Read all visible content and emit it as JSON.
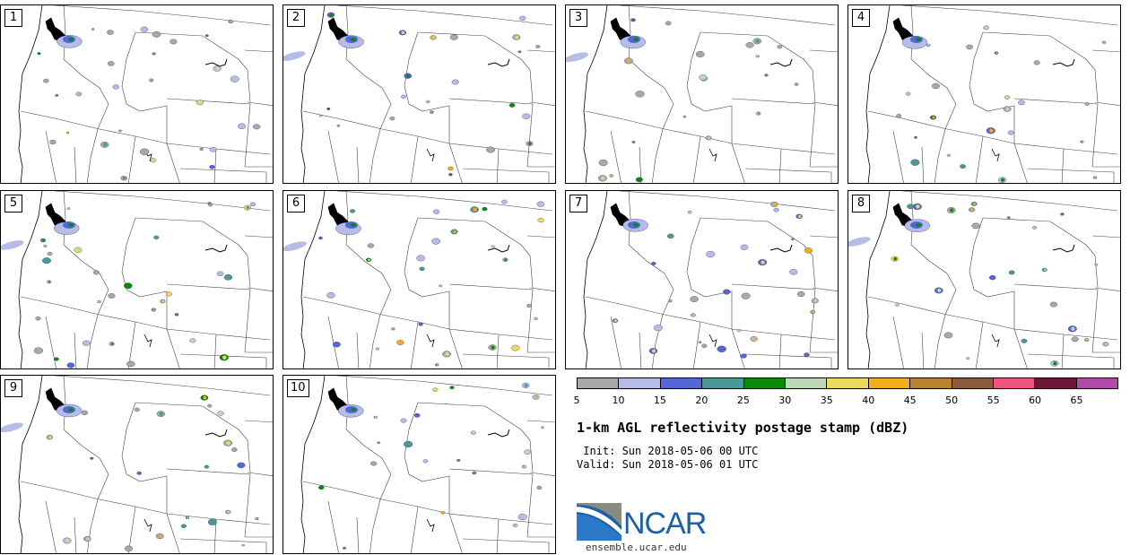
{
  "panels": [
    {
      "label": "1"
    },
    {
      "label": "2"
    },
    {
      "label": "3"
    },
    {
      "label": "4"
    },
    {
      "label": "5"
    },
    {
      "label": "6"
    },
    {
      "label": "7"
    },
    {
      "label": "8"
    },
    {
      "label": "9"
    },
    {
      "label": "10"
    }
  ],
  "colorbar": {
    "colors": [
      "#a8a8a8",
      "#b3bde8",
      "#5566d8",
      "#4c9899",
      "#0a8a0a",
      "#bcd9b8",
      "#eed960",
      "#f0ae1e",
      "#b8822e",
      "#8c5a3c",
      "#f0557e",
      "#6d1838",
      "#b04ca8"
    ],
    "ticks": [
      "5",
      "10",
      "15",
      "20",
      "25",
      "30",
      "35",
      "40",
      "45",
      "50",
      "55",
      "60",
      "65"
    ]
  },
  "title": "1-km AGL reflectivity postage stamp (dBZ)",
  "init": " Init: Sun 2018-05-06 00 UTC",
  "valid": "Valid: Sun 2018-05-06 01 UTC",
  "logo": {
    "text": "NCAR",
    "url": "ensemble.ucar.edu",
    "color": "#1a5fa8"
  }
}
